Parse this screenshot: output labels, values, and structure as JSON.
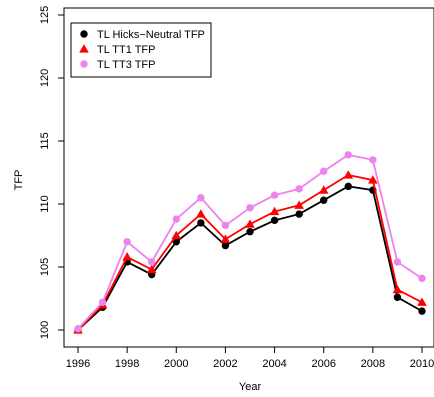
{
  "chart_data": {
    "type": "line",
    "title": "",
    "xlabel": "Year",
    "ylabel": "TFP",
    "x": [
      1996,
      1997,
      1998,
      1999,
      2000,
      2001,
      2002,
      2003,
      2004,
      2005,
      2006,
      2007,
      2008,
      2009,
      2010
    ],
    "xlim": [
      1996,
      2010
    ],
    "ylim": [
      100,
      125
    ],
    "x_ticks": [
      1996,
      1998,
      2000,
      2002,
      2004,
      2006,
      2008,
      2010
    ],
    "y_ticks": [
      100,
      105,
      110,
      115,
      120,
      125
    ],
    "x_tick_labels": [
      "1996",
      "1998",
      "2000",
      "2002",
      "2004",
      "2006",
      "2008",
      "2010"
    ],
    "y_tick_labels": [
      "100",
      "105",
      "110",
      "115",
      "120",
      "125"
    ],
    "legend_position": "top-left",
    "grid": false,
    "series": [
      {
        "name": "TL Hicks−Neutral TFP",
        "color": "#000000",
        "marker": "circle",
        "values": [
          100.0,
          101.8,
          105.4,
          104.4,
          107.0,
          108.5,
          106.7,
          107.8,
          108.7,
          109.2,
          110.3,
          111.4,
          111.1,
          102.6,
          101.5
        ]
      },
      {
        "name": "TL TT1 TFP",
        "color": "#ff0000",
        "marker": "triangle",
        "values": [
          100.0,
          102.0,
          105.8,
          104.8,
          107.5,
          109.2,
          107.2,
          108.4,
          109.4,
          109.9,
          111.1,
          112.3,
          111.9,
          103.2,
          102.2
        ]
      },
      {
        "name": "TL TT3 TFP",
        "color": "#ee82ee",
        "marker": "circle",
        "values": [
          100.1,
          102.2,
          107.0,
          105.4,
          108.8,
          110.5,
          108.3,
          109.7,
          110.7,
          111.2,
          112.6,
          113.9,
          113.5,
          105.4,
          104.1
        ]
      }
    ]
  }
}
